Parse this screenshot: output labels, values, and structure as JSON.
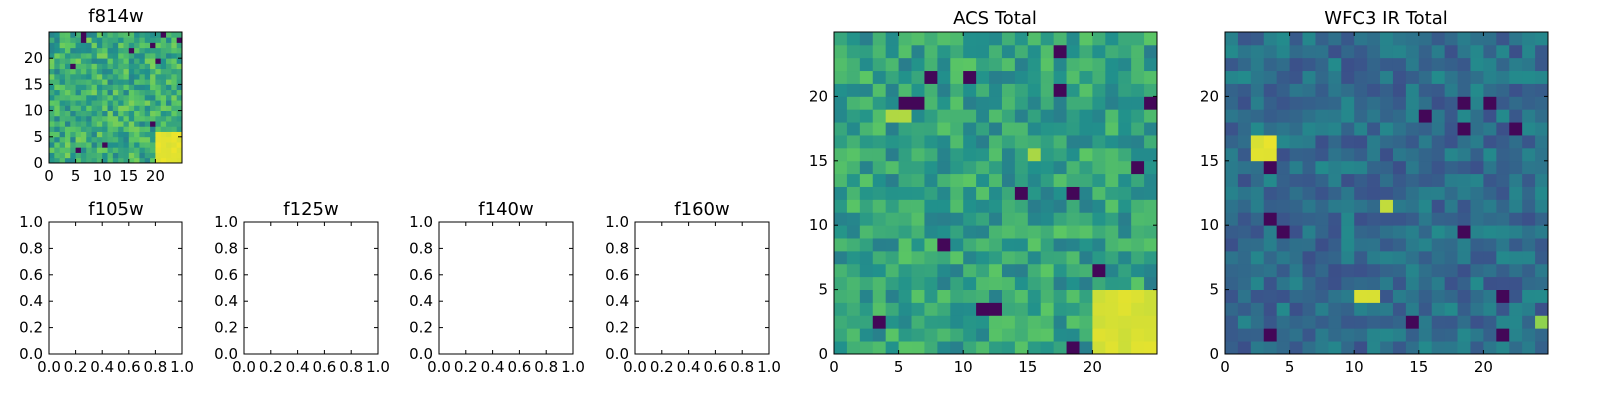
{
  "colormap": [
    "#440154",
    "#3b528b",
    "#21918c",
    "#5ec962",
    "#fde725"
  ],
  "chart_data": [
    {
      "id": "f814w",
      "type": "heatmap",
      "title": "f814w",
      "nx": 25,
      "ny": 25,
      "xlim": [
        0,
        25
      ],
      "ylim": [
        0,
        25
      ],
      "xticks": [
        "0",
        "5",
        "10",
        "15",
        "20"
      ],
      "yticks": [
        "0",
        "5",
        "10",
        "15",
        "20"
      ],
      "base_level": 0.62,
      "noise": 0.18,
      "seed": 11,
      "blobs": [
        {
          "x0": 20,
          "x1": 25,
          "y0": 0,
          "y1": 6,
          "level": 0.98
        }
      ]
    },
    {
      "id": "f105w",
      "type": "empty",
      "title": "f105w",
      "xlim": [
        0,
        1
      ],
      "ylim": [
        0,
        1
      ],
      "xticks": [
        "0.0",
        "0.2",
        "0.4",
        "0.6",
        "0.8",
        "1.0"
      ],
      "yticks": [
        "0.0",
        "0.2",
        "0.4",
        "0.6",
        "0.8",
        "1.0"
      ]
    },
    {
      "id": "f125w",
      "type": "empty",
      "title": "f125w",
      "xlim": [
        0,
        1
      ],
      "ylim": [
        0,
        1
      ],
      "xticks": [
        "0.0",
        "0.2",
        "0.4",
        "0.6",
        "0.8",
        "1.0"
      ],
      "yticks": [
        "0.0",
        "0.2",
        "0.4",
        "0.6",
        "0.8",
        "1.0"
      ]
    },
    {
      "id": "f140w",
      "type": "empty",
      "title": "f140w",
      "xlim": [
        0,
        1
      ],
      "ylim": [
        0,
        1
      ],
      "xticks": [
        "0.0",
        "0.2",
        "0.4",
        "0.6",
        "0.8",
        "1.0"
      ],
      "yticks": [
        "0.0",
        "0.2",
        "0.4",
        "0.6",
        "0.8",
        "1.0"
      ]
    },
    {
      "id": "f160w",
      "type": "empty",
      "title": "f160w",
      "xlim": [
        0,
        1
      ],
      "ylim": [
        0,
        1
      ],
      "xticks": [
        "0.0",
        "0.2",
        "0.4",
        "0.6",
        "0.8",
        "1.0"
      ],
      "yticks": [
        "0.0",
        "0.2",
        "0.4",
        "0.6",
        "0.8",
        "1.0"
      ]
    },
    {
      "id": "acs-total",
      "type": "heatmap",
      "title": "ACS Total",
      "nx": 25,
      "ny": 25,
      "xlim": [
        0,
        25
      ],
      "ylim": [
        0,
        25
      ],
      "xticks": [
        "0",
        "5",
        "10",
        "15",
        "20"
      ],
      "yticks": [
        "0",
        "5",
        "10",
        "15",
        "20"
      ],
      "base_level": 0.58,
      "noise": 0.16,
      "seed": 29,
      "blobs": [
        {
          "x0": 20,
          "x1": 25,
          "y0": 0,
          "y1": 5,
          "level": 0.96
        },
        {
          "x0": 4,
          "x1": 6,
          "y0": 18,
          "y1": 19,
          "level": 0.9
        },
        {
          "x0": 15,
          "x1": 16,
          "y0": 15,
          "y1": 16,
          "level": 0.9
        }
      ]
    },
    {
      "id": "wfc3-ir-total",
      "type": "heatmap",
      "title": "WFC3 IR Total",
      "nx": 25,
      "ny": 25,
      "xlim": [
        0,
        25
      ],
      "ylim": [
        0,
        25
      ],
      "xticks": [
        "0",
        "5",
        "10",
        "15",
        "20"
      ],
      "yticks": [
        "0",
        "5",
        "10",
        "15",
        "20"
      ],
      "base_level": 0.36,
      "noise": 0.12,
      "seed": 47,
      "blobs": [
        {
          "x0": 2,
          "x1": 4,
          "y0": 15,
          "y1": 17,
          "level": 0.97
        },
        {
          "x0": 10,
          "x1": 12,
          "y0": 4,
          "y1": 5,
          "level": 0.97
        },
        {
          "x0": 12,
          "x1": 13,
          "y0": 11,
          "y1": 12,
          "level": 0.92
        },
        {
          "x0": 24,
          "x1": 25,
          "y0": 2,
          "y1": 3,
          "level": 0.85
        }
      ]
    }
  ]
}
